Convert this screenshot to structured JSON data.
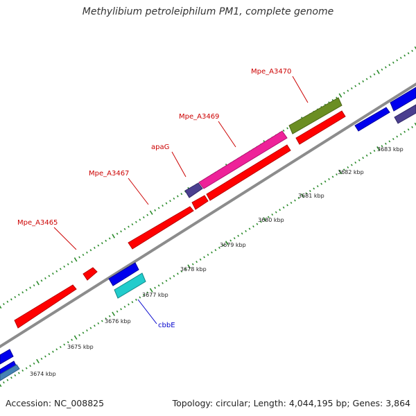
{
  "title": "Methylibium petroleiphilum PM1, complete genome",
  "footer": {
    "accession": "Accession: NC_008825",
    "summary": "Topology: circular; Length: 4,044,195 bp; Genes: 3,864"
  },
  "colors": {
    "background": "#ffffff",
    "backbone": "#8c8c8c",
    "tick": "#2a8a2a",
    "label_red": "#cc0000",
    "label_blue": "#0000cc",
    "gene_red": "#ff0000",
    "gene_blue": "#0000ee",
    "gene_cyan": "#22cccc",
    "gene_magenta": "#ee2299",
    "gene_olive": "#6b8e23",
    "gene_purple": "#4b3f8f",
    "gene_slate": "#4682b4"
  },
  "scale_labels": [
    "3674 kbp",
    "3675 kbp",
    "3676 kbp",
    "3677 kbp",
    "3678 kbp",
    "3679 kbp",
    "3680 kbp",
    "3681 kbp",
    "3682 kbp",
    "3683 kbp"
  ],
  "gene_labels": [
    {
      "text": "Mpe_A3465",
      "color": "red"
    },
    {
      "text": "Mpe_A3467",
      "color": "red"
    },
    {
      "text": "apaG",
      "color": "red"
    },
    {
      "text": "Mpe_A3469",
      "color": "red"
    },
    {
      "text": "Mpe_A3470",
      "color": "red"
    },
    {
      "text": "cbbE",
      "color": "blue"
    }
  ]
}
